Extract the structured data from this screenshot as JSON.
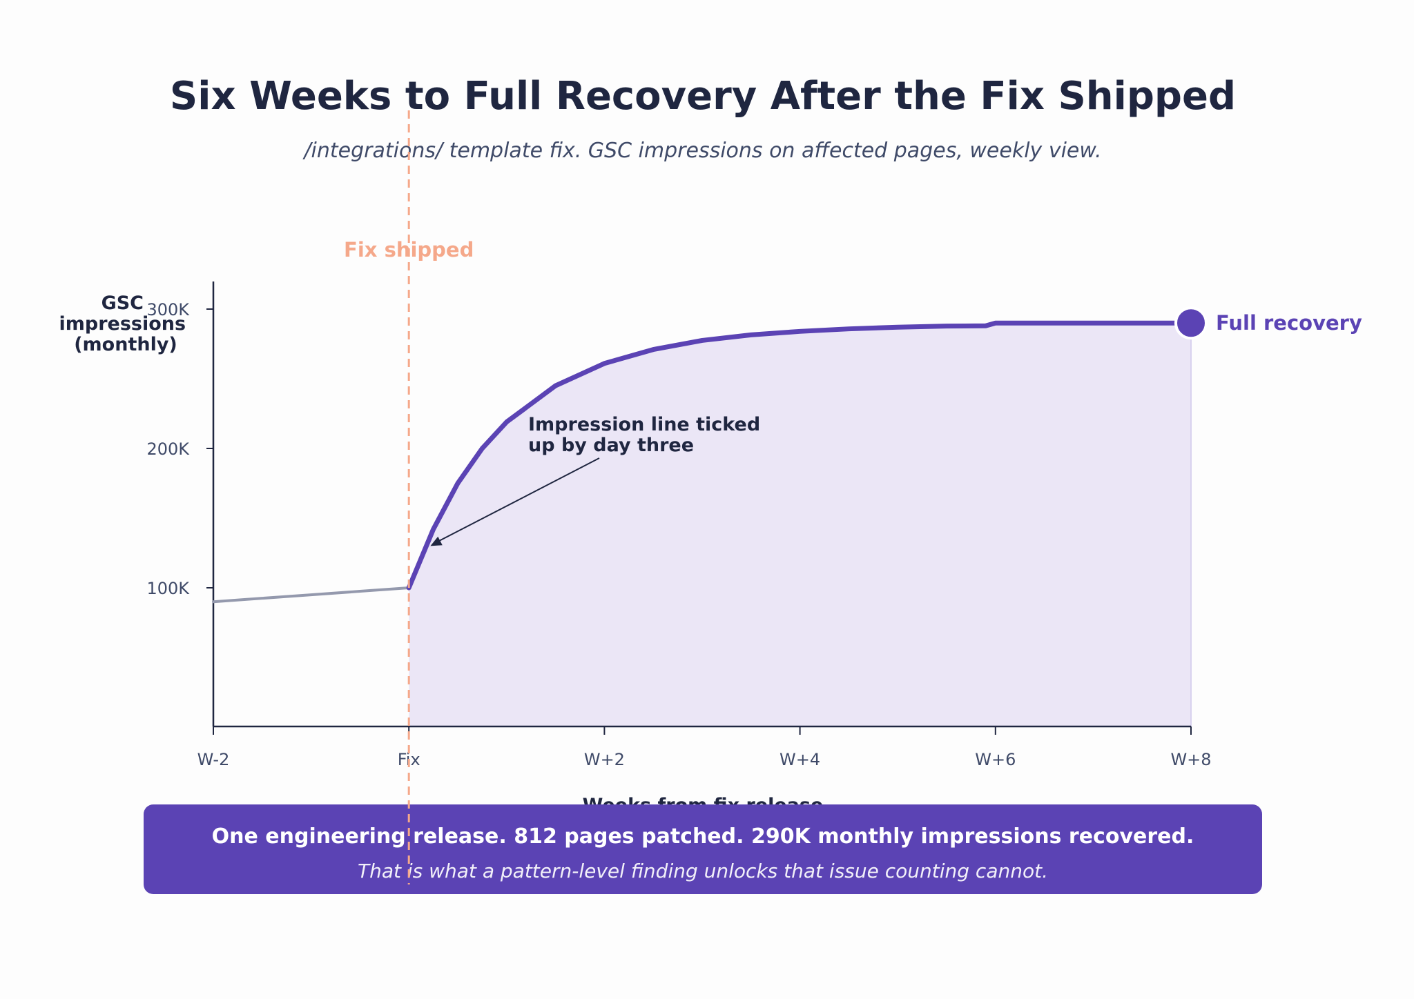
{
  "chart_data": {
    "type": "line",
    "title": "Six Weeks to Full Recovery After the Fix Shipped",
    "subtitle": "/integrations/ template fix. GSC impressions on affected pages, weekly view.",
    "xlabel": "Weeks from fix release",
    "ylabel_lines": [
      "GSC",
      "impressions",
      "(monthly)"
    ],
    "x_tick_labels": [
      "W-2",
      "Fix",
      "W+2",
      "W+4",
      "W+6",
      "W+8"
    ],
    "x_ticks": [
      -2,
      0,
      2,
      4,
      6,
      8
    ],
    "xlim": [
      -2,
      8
    ],
    "y_ticks": [
      100000,
      200000,
      300000
    ],
    "y_tick_labels": [
      "100K",
      "200K",
      "300K"
    ],
    "ylim": [
      0,
      320000
    ],
    "series": [
      {
        "segment": "before-fix",
        "x": [
          -2,
          -1.5,
          -1,
          -0.5,
          0
        ],
        "y": [
          90000,
          92500,
          95000,
          97500,
          100000
        ],
        "color": "#9499ad"
      },
      {
        "segment": "after-fix",
        "x": [
          0,
          0.25,
          0.5,
          0.75,
          1,
          1.5,
          2,
          2.5,
          3,
          3.5,
          4,
          4.5,
          5,
          5.5,
          5.9,
          6,
          7,
          8
        ],
        "y": [
          100000,
          142000,
          175000,
          200000,
          219000,
          245000,
          261000,
          271000,
          277500,
          281500,
          284000,
          285800,
          287000,
          287800,
          288000,
          290000,
          290000,
          290000
        ],
        "color": "#5b43b4",
        "fill": "#ebe6f6"
      }
    ],
    "annotations": {
      "fix_marker": {
        "x": 0,
        "label": "Fix shipped",
        "color": "#f5a88a"
      },
      "tick_up": {
        "lines": [
          "Impression line ticked",
          "up by day three"
        ],
        "arrow_to_x": 0.22,
        "arrow_to_y": 130000
      },
      "end_marker": {
        "x": 8,
        "y": 290000,
        "label": "Full recovery"
      }
    },
    "grid": false,
    "legend": "none"
  },
  "callout": {
    "headline": "One engineering release. 812 pages patched. 290K monthly impressions recovered.",
    "subline": "That is what a pattern-level finding unlocks that issue counting cannot.",
    "background": "#5b43b4"
  },
  "colors": {
    "ink": "#1f2640",
    "muted": "#3f4a68",
    "accent": "#5b43b4",
    "fix": "#f5a88a"
  }
}
